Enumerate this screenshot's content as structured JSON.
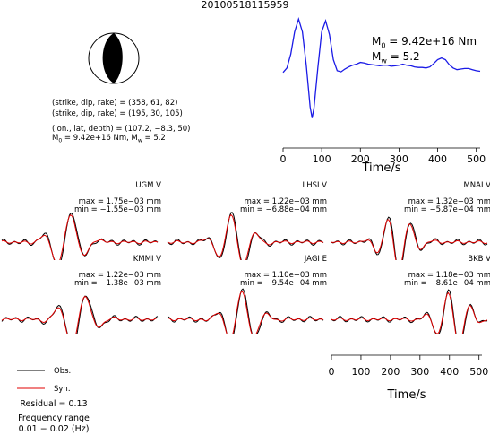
{
  "title": "20100518115959",
  "beachball": {
    "strike_dip_rake_1": "(strike, dip, rake) = (358, 61, 82)",
    "strike_dip_rake_2": "(strike, dip, rake) = (195, 30, 105)",
    "location": "(lon., lat, depth) = (107.2, −8.3, 50)",
    "moment_prefix": "M",
    "moment_sub": "0",
    "moment_mid": " = 9.42e+16 Nm, M",
    "moment_sub2": "w",
    "moment_end": " = 5.2"
  },
  "stf_labels": {
    "m0_prefix": "M",
    "m0_sub": "0",
    "m0_value": " = 9.42e+16 Nm",
    "mw_prefix": "M",
    "mw_sub": "w",
    "mw_value": " = 5.2"
  },
  "stf_xlabel": "Time/s",
  "bottom_xlabel": "Time/s",
  "legend": {
    "obs": "Obs.",
    "syn": "Syn.",
    "residual": "Residual = 0.13",
    "freq_title": "Frequency range",
    "freq_value": "0.01 − 0.02 (Hz)"
  },
  "colors": {
    "observed": "#000000",
    "synthetic": "#e00000",
    "stf": "#1a1ae6"
  },
  "chart_data": [
    {
      "type": "line",
      "name": "source time function",
      "xlabel": "Time/s",
      "xlim": [
        0,
        510
      ],
      "xticks": [
        0,
        100,
        200,
        300,
        400,
        500
      ],
      "series": [
        {
          "x": [
            0,
            10,
            20,
            30,
            40,
            50,
            60,
            70,
            75,
            80,
            90,
            100,
            110,
            120,
            130,
            140,
            150,
            160,
            170,
            180,
            190,
            200,
            210,
            220,
            230,
            240,
            250,
            260,
            270,
            280,
            290,
            300,
            310,
            320,
            330,
            340,
            350,
            360,
            370,
            380,
            390,
            400,
            410,
            420,
            430,
            440,
            450,
            460,
            470,
            480,
            490,
            500,
            510
          ],
          "y": [
            0.02,
            0.1,
            0.35,
            0.75,
            0.98,
            0.75,
            0.15,
            -0.6,
            -0.8,
            -0.62,
            0.1,
            0.75,
            0.95,
            0.7,
            0.25,
            0.05,
            0.03,
            0.08,
            0.12,
            0.15,
            0.17,
            0.2,
            0.19,
            0.17,
            0.16,
            0.15,
            0.14,
            0.15,
            0.15,
            0.13,
            0.14,
            0.15,
            0.17,
            0.15,
            0.14,
            0.12,
            0.11,
            0.11,
            0.1,
            0.12,
            0.18,
            0.25,
            0.28,
            0.25,
            0.16,
            0.1,
            0.07,
            0.08,
            0.09,
            0.09,
            0.07,
            0.05,
            0.04
          ]
        }
      ]
    },
    {
      "type": "line",
      "name": "waveform fits",
      "xlabel": "Time/s",
      "xlim": [
        0,
        510
      ],
      "xticks": [
        0,
        100,
        200,
        300,
        400,
        500
      ],
      "stations": [
        {
          "name": "UGM V",
          "max": "max = 1.75e−03 mm",
          "min": "min = −1.55e−03 mm"
        },
        {
          "name": "LHSI V",
          "max": "max = 1.22e−03 mm",
          "min": "min = −6.88e−04 mm"
        },
        {
          "name": "MNAI V",
          "max": "max = 1.32e−03 mm",
          "min": "min = −5.87e−04 mm"
        },
        {
          "name": "KMMI V",
          "max": "max = 1.22e−03 mm",
          "min": "min = −1.38e−03 mm"
        },
        {
          "name": "JAGI E",
          "max": "max = 1.10e−03 mm",
          "min": "min = −9.54e−04 mm"
        },
        {
          "name": "BKB V",
          "max": "max = 1.18e−03 mm",
          "min": "min = −8.61e−04 mm"
        }
      ]
    }
  ]
}
